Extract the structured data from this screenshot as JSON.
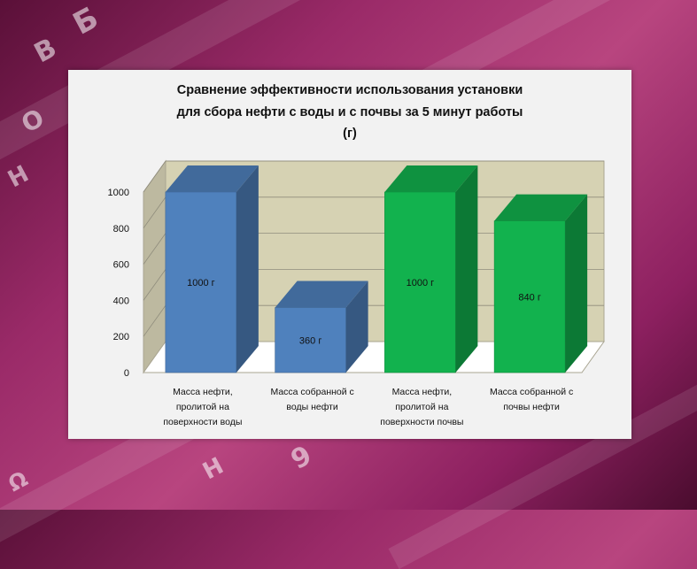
{
  "chart_data": {
    "type": "bar",
    "title_lines": [
      "Сравнение эффективности использования установки",
      "для сбора нефти с воды и с почвы за  5 минут работы",
      "(г)"
    ],
    "categories": [
      [
        "Масса нефти,",
        "пролитой  на",
        "поверхности воды"
      ],
      [
        "Масса собранной с",
        "воды нефти"
      ],
      [
        "Масса нефти,",
        "пролитой  на",
        "поверхности почвы"
      ],
      [
        "Масса собранной с",
        "почвы нефти"
      ]
    ],
    "values": [
      1000,
      360,
      1000,
      840
    ],
    "data_labels": [
      "1000 г",
      "360 г",
      "1000 г",
      "840 г"
    ],
    "bar_colors": [
      "#4f81bd",
      "#4f81bd",
      "#12b24e",
      "#12b24e"
    ],
    "ylim": [
      0,
      1000
    ],
    "y_ticks": [
      "0",
      "200",
      "400",
      "600",
      "800",
      "1000"
    ],
    "grid": true,
    "legend": "none"
  }
}
